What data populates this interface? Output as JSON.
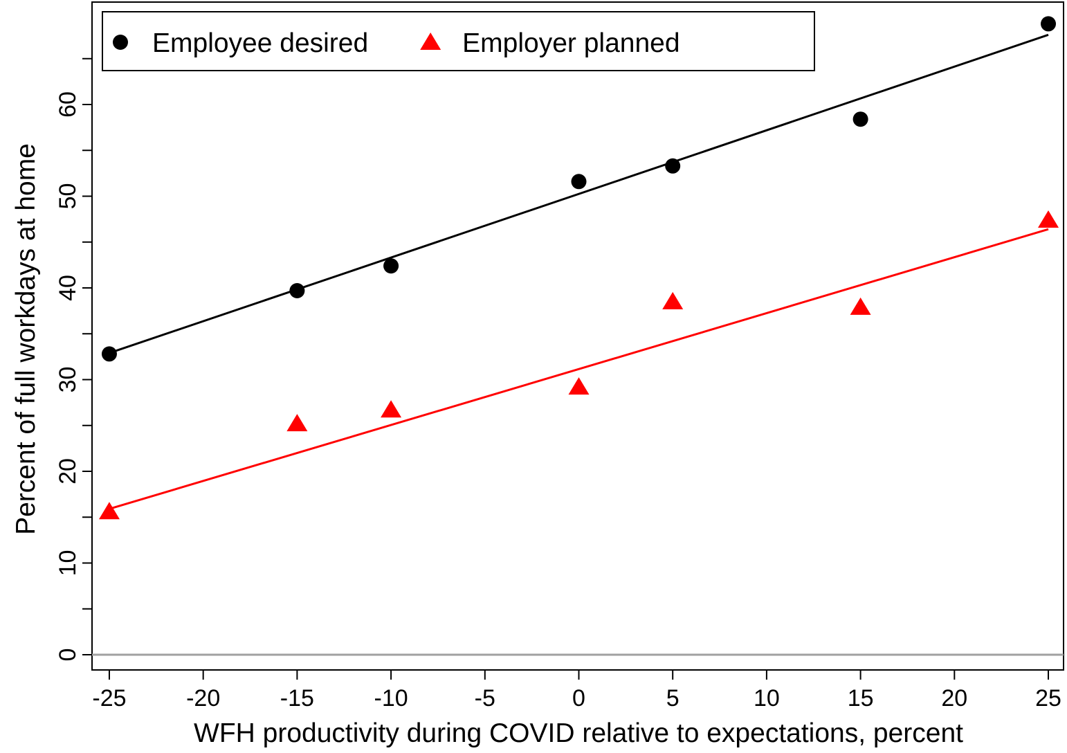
{
  "chart_data": {
    "type": "scatter",
    "x_label": "WFH productivity during COVID relative to expectations, percent",
    "y_label": "Percent of full workdays at home",
    "x": [
      -25,
      -15,
      -10,
      0,
      5,
      15,
      25
    ],
    "series": [
      {
        "name": "Employee desired",
        "color": "#000000",
        "marker": "circle",
        "values": [
          32.8,
          39.7,
          42.4,
          51.6,
          53.3,
          58.4,
          68.8
        ],
        "fit_x": [
          -25,
          25
        ],
        "fit_values": [
          32.9,
          67.6
        ]
      },
      {
        "name": "Employer planned",
        "color": "#ff0000",
        "marker": "triangle",
        "values": [
          15.6,
          25.2,
          26.7,
          29.2,
          38.5,
          37.9,
          47.4
        ],
        "fit_x": [
          -25,
          25
        ],
        "fit_values": [
          15.9,
          46.4
        ]
      }
    ],
    "xlim": [
      -25.92,
      25.81
    ],
    "ylim": [
      -1.66,
      71.17
    ],
    "xticks": [
      -25,
      -20,
      -15,
      -10,
      -5,
      0,
      5,
      10,
      15,
      20,
      25
    ],
    "yticks": [
      0,
      10,
      20,
      30,
      40,
      50,
      60
    ],
    "yminorticks": [
      5,
      15,
      25,
      35,
      45,
      55,
      65
    ],
    "reference_line": 0,
    "reference_color": "#a0a0a0",
    "legend": "top-left"
  }
}
